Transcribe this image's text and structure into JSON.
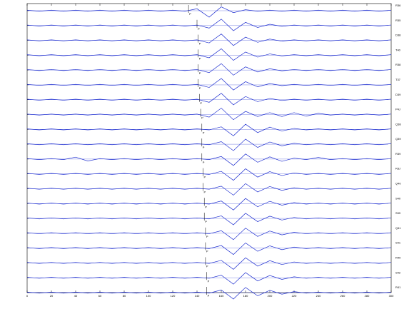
{
  "chart_data": {
    "type": "seismogram",
    "color": "#1f2fd0",
    "pick_label": "P",
    "x": [
      0,
      10,
      20,
      30,
      40,
      50,
      60,
      70,
      80,
      90,
      100,
      110,
      120,
      130,
      140,
      150,
      160,
      170,
      180,
      190,
      200,
      210,
      220,
      230,
      240,
      250,
      260,
      270,
      280,
      290,
      300
    ],
    "xlim": [
      0,
      300
    ],
    "xticks": [
      0,
      20,
      40,
      60,
      80,
      100,
      120,
      140,
      160,
      180,
      200,
      220,
      240,
      260,
      280,
      300
    ],
    "series": [
      {
        "name": "R36",
        "pick": 133,
        "values": [
          0.08,
          0.08,
          0.08,
          0.08,
          0.08,
          0.08,
          0.08,
          0.08,
          0.08,
          0.08,
          0.08,
          0.08,
          0.08,
          0.08,
          0.3,
          1,
          0.6,
          0.3,
          0.15,
          0.08,
          0.08,
          0.08,
          0.08,
          0.08,
          0.08,
          0.08,
          0.08,
          0.08,
          0.08,
          0.08,
          0.08
        ]
      },
      {
        "name": "R35",
        "pick": 140,
        "values": [
          0.08,
          0.08,
          0.08,
          0.08,
          0.08,
          0.08,
          0.08,
          0.08,
          0.08,
          0.08,
          0.08,
          0.08,
          0.08,
          0.08,
          0.08,
          0.4,
          1,
          0.8,
          0.5,
          0.3,
          0.2,
          0.12,
          0.08,
          0.08,
          0.08,
          0.08,
          0.08,
          0.08,
          0.08,
          0.08,
          0.08
        ]
      },
      {
        "name": "D38",
        "pick": 141,
        "values": [
          0.08,
          0.08,
          0.08,
          0.08,
          0.08,
          0.08,
          0.08,
          0.08,
          0.08,
          0.08,
          0.08,
          0.08,
          0.08,
          0.08,
          0.08,
          0.4,
          1,
          0.8,
          0.5,
          0.3,
          0.2,
          0.12,
          0.08,
          0.08,
          0.08,
          0.08,
          0.08,
          0.08,
          0.08,
          0.08,
          0.08
        ]
      },
      {
        "name": "T40",
        "pick": 141,
        "values": [
          0.08,
          0.08,
          0.08,
          0.08,
          0.08,
          0.08,
          0.08,
          0.08,
          0.08,
          0.08,
          0.08,
          0.08,
          0.08,
          0.08,
          0.08,
          0.4,
          1,
          0.8,
          0.5,
          0.3,
          0.2,
          0.12,
          0.08,
          0.08,
          0.08,
          0.08,
          0.08,
          0.08,
          0.08,
          0.08,
          0.08
        ]
      },
      {
        "name": "R38",
        "pick": 141,
        "values": [
          0.08,
          0.08,
          0.08,
          0.08,
          0.08,
          0.08,
          0.08,
          0.08,
          0.08,
          0.08,
          0.08,
          0.08,
          0.08,
          0.08,
          0.08,
          0.4,
          1,
          0.8,
          0.5,
          0.3,
          0.2,
          0.12,
          0.08,
          0.08,
          0.08,
          0.08,
          0.08,
          0.08,
          0.08,
          0.08,
          0.08
        ]
      },
      {
        "name": "T37",
        "pick": 141,
        "values": [
          0.08,
          0.08,
          0.08,
          0.08,
          0.08,
          0.08,
          0.08,
          0.08,
          0.08,
          0.08,
          0.08,
          0.08,
          0.08,
          0.08,
          0.08,
          0.4,
          1,
          0.8,
          0.5,
          0.3,
          0.2,
          0.12,
          0.08,
          0.08,
          0.08,
          0.08,
          0.08,
          0.08,
          0.08,
          0.08,
          0.08
        ]
      },
      {
        "name": "D39",
        "pick": 142,
        "values": [
          0.08,
          0.08,
          0.08,
          0.08,
          0.08,
          0.08,
          0.08,
          0.08,
          0.08,
          0.08,
          0.08,
          0.08,
          0.08,
          0.08,
          0.08,
          0.4,
          1,
          0.8,
          0.5,
          0.3,
          0.2,
          0.12,
          0.08,
          0.08,
          0.08,
          0.08,
          0.08,
          0.08,
          0.08,
          0.08,
          0.08
        ]
      },
      {
        "name": "P4J",
        "pick": 143,
        "values": [
          0.08,
          0.08,
          0.08,
          0.08,
          0.08,
          0.08,
          0.08,
          0.08,
          0.08,
          0.08,
          0.08,
          0.08,
          0.08,
          0.08,
          0.08,
          0.4,
          1,
          0.8,
          0.5,
          0.3,
          0.3,
          0.3,
          0.3,
          0.25,
          0.2,
          0.08,
          0.08,
          0.08,
          0.08,
          0.08,
          0.08
        ]
      },
      {
        "name": "Q38",
        "pick": 144,
        "values": [
          0.08,
          0.08,
          0.08,
          0.08,
          0.08,
          0.08,
          0.08,
          0.08,
          0.08,
          0.08,
          0.08,
          0.08,
          0.08,
          0.08,
          0.08,
          0.08,
          0.4,
          1,
          0.8,
          0.5,
          0.35,
          0.25,
          0.15,
          0.08,
          0.08,
          0.08,
          0.08,
          0.08,
          0.08,
          0.08,
          0.08
        ]
      },
      {
        "name": "Q39",
        "pick": 144,
        "values": [
          0.08,
          0.08,
          0.08,
          0.08,
          0.08,
          0.08,
          0.08,
          0.08,
          0.08,
          0.08,
          0.08,
          0.08,
          0.08,
          0.08,
          0.08,
          0.08,
          0.4,
          1,
          0.8,
          0.5,
          0.35,
          0.25,
          0.15,
          0.08,
          0.08,
          0.08,
          0.08,
          0.08,
          0.08,
          0.08,
          0.08
        ]
      },
      {
        "name": "R39",
        "pick": 144,
        "values": [
          0.08,
          0.08,
          0.08,
          0.08,
          0.3,
          0.3,
          0.08,
          0.08,
          0.08,
          0.08,
          0.08,
          0.08,
          0.08,
          0.08,
          0.08,
          0.08,
          0.4,
          1,
          0.8,
          0.5,
          0.35,
          0.35,
          0.15,
          0.08,
          0.25,
          0.08,
          0.08,
          0.08,
          0.08,
          0.08,
          0.08
        ]
      },
      {
        "name": "R3J",
        "pick": 145,
        "values": [
          0.08,
          0.08,
          0.08,
          0.08,
          0.08,
          0.08,
          0.08,
          0.08,
          0.08,
          0.08,
          0.08,
          0.08,
          0.08,
          0.08,
          0.08,
          0.08,
          0.4,
          1,
          0.8,
          0.5,
          0.35,
          0.25,
          0.15,
          0.08,
          0.08,
          0.08,
          0.08,
          0.08,
          0.08,
          0.08,
          0.08
        ]
      },
      {
        "name": "Q40",
        "pick": 145,
        "values": [
          0.08,
          0.08,
          0.08,
          0.08,
          0.08,
          0.08,
          0.08,
          0.08,
          0.08,
          0.08,
          0.08,
          0.08,
          0.08,
          0.08,
          0.08,
          0.08,
          0.4,
          1,
          0.8,
          0.5,
          0.35,
          0.25,
          0.15,
          0.08,
          0.08,
          0.08,
          0.08,
          0.08,
          0.08,
          0.08,
          0.08
        ]
      },
      {
        "name": "S40",
        "pick": 146,
        "values": [
          0.08,
          0.08,
          0.08,
          0.08,
          0.08,
          0.08,
          0.08,
          0.08,
          0.08,
          0.08,
          0.08,
          0.08,
          0.08,
          0.08,
          0.08,
          0.08,
          0.4,
          1,
          0.8,
          0.5,
          0.35,
          0.25,
          0.15,
          0.08,
          0.08,
          0.08,
          0.08,
          0.08,
          0.08,
          0.08,
          0.08
        ]
      },
      {
        "name": "S39",
        "pick": 146,
        "values": [
          0.08,
          0.08,
          0.08,
          0.08,
          0.08,
          0.08,
          0.08,
          0.08,
          0.08,
          0.08,
          0.08,
          0.08,
          0.08,
          0.08,
          0.08,
          0.08,
          0.4,
          1,
          0.8,
          0.5,
          0.35,
          0.25,
          0.15,
          0.08,
          0.08,
          0.08,
          0.08,
          0.08,
          0.08,
          0.08,
          0.08
        ]
      },
      {
        "name": "Q41",
        "pick": 147,
        "values": [
          0.08,
          0.08,
          0.08,
          0.08,
          0.08,
          0.08,
          0.08,
          0.08,
          0.08,
          0.08,
          0.08,
          0.08,
          0.08,
          0.08,
          0.08,
          0.08,
          0.4,
          1,
          0.8,
          0.5,
          0.35,
          0.25,
          0.15,
          0.08,
          0.08,
          0.08,
          0.08,
          0.08,
          0.08,
          0.08,
          0.08
        ]
      },
      {
        "name": "S41",
        "pick": 147,
        "values": [
          0.08,
          0.08,
          0.08,
          0.08,
          0.08,
          0.08,
          0.08,
          0.08,
          0.08,
          0.08,
          0.08,
          0.08,
          0.08,
          0.08,
          0.08,
          0.08,
          0.4,
          1,
          0.8,
          0.5,
          0.35,
          0.25,
          0.15,
          0.08,
          0.08,
          0.08,
          0.08,
          0.08,
          0.08,
          0.08,
          0.08
        ]
      },
      {
        "name": "R40",
        "pick": 147,
        "values": [
          0.08,
          0.08,
          0.08,
          0.08,
          0.08,
          0.08,
          0.08,
          0.08,
          0.08,
          0.08,
          0.08,
          0.08,
          0.08,
          0.08,
          0.08,
          0.08,
          0.4,
          1,
          0.8,
          0.5,
          0.35,
          0.25,
          0.15,
          0.08,
          0.08,
          0.08,
          0.08,
          0.08,
          0.08,
          0.08,
          0.08
        ]
      },
      {
        "name": "S42",
        "pick": 148,
        "values": [
          0.08,
          0.08,
          0.08,
          0.08,
          0.08,
          0.08,
          0.08,
          0.08,
          0.08,
          0.08,
          0.08,
          0.08,
          0.08,
          0.08,
          0.08,
          0.08,
          0.4,
          1,
          0.8,
          0.5,
          0.35,
          0.25,
          0.15,
          0.08,
          0.08,
          0.08,
          0.08,
          0.08,
          0.08,
          0.08,
          0.08
        ]
      },
      {
        "name": "R41",
        "pick": 148,
        "values": [
          0.08,
          0.08,
          0.08,
          0.08,
          0.08,
          0.08,
          0.08,
          0.08,
          0.08,
          0.08,
          0.08,
          0.08,
          0.08,
          0.08,
          0.08,
          0.08,
          0.4,
          1,
          0.8,
          0.5,
          0.35,
          0.25,
          0.15,
          0.08,
          0.08,
          0.08,
          0.08,
          0.08,
          0.08,
          0.08,
          0.08
        ]
      }
    ]
  }
}
